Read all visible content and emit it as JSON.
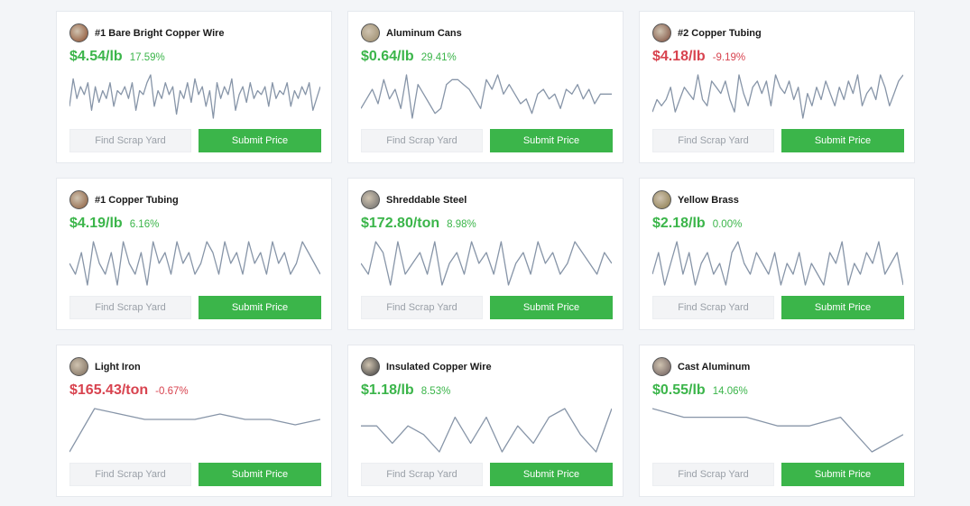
{
  "colors": {
    "up": "#3bb54a",
    "down": "#d8434f",
    "sparkline": "#8795a8",
    "button": "#3bb54a"
  },
  "find_label": "Find Scrap Yard",
  "submit_label": "Submit Price",
  "cards": [
    {
      "name": "#1 Bare Bright Copper Wire",
      "price": "$4.54/lb",
      "change": "17.59%",
      "direction": "up",
      "icon": "copper-wire-thumbnail",
      "series": [
        6,
        13,
        8,
        11,
        9,
        12,
        5,
        11,
        7,
        10,
        8,
        12,
        6,
        10,
        9,
        11,
        8,
        12,
        5,
        10,
        9,
        12,
        14,
        6,
        10,
        8,
        12,
        9,
        11,
        4,
        10,
        8,
        12,
        7,
        13,
        9,
        11,
        6,
        10,
        3,
        12,
        8,
        11,
        9,
        13,
        5,
        9,
        11,
        7,
        12,
        8,
        10,
        9,
        11,
        6,
        12,
        8,
        10,
        9,
        12,
        6,
        10,
        8,
        11,
        9,
        12,
        5,
        8,
        11
      ]
    },
    {
      "name": "Aluminum Cans",
      "price": "$0.64/lb",
      "change": "29.41%",
      "direction": "up",
      "icon": "aluminum-cans-thumbnail",
      "series": [
        10,
        12,
        14,
        11,
        16,
        12,
        14,
        10,
        17,
        8,
        15,
        13,
        11,
        9,
        10,
        15,
        16,
        16,
        15,
        14,
        12,
        10,
        16,
        14,
        17,
        13,
        15,
        13,
        11,
        12,
        9,
        13,
        14,
        12,
        13,
        10,
        14,
        13,
        15,
        12,
        14,
        11,
        13,
        13,
        13
      ]
    },
    {
      "name": "#2 Copper Tubing",
      "price": "$4.18/lb",
      "change": "-9.19%",
      "direction": "down",
      "icon": "copper-tubing-thumbnail",
      "series": [
        7,
        9,
        8,
        9,
        11,
        7,
        9,
        11,
        10,
        9,
        13,
        9,
        8,
        12,
        11,
        10,
        12,
        9,
        7,
        13,
        10,
        8,
        11,
        12,
        10,
        12,
        8,
        13,
        11,
        10,
        12,
        9,
        11,
        6,
        10,
        8,
        11,
        9,
        12,
        10,
        8,
        11,
        9,
        12,
        10,
        13,
        8,
        10,
        11,
        9,
        13,
        11,
        8,
        10,
        12,
        13
      ]
    },
    {
      "name": "#1 Copper Tubing",
      "price": "$4.19/lb",
      "change": "6.16%",
      "direction": "up",
      "icon": "copper-tubing-thumbnail",
      "series": [
        10,
        9,
        11,
        8,
        12,
        10,
        9,
        11,
        8,
        12,
        10,
        9,
        11,
        8,
        12,
        10,
        11,
        9,
        12,
        10,
        11,
        9,
        10,
        12,
        11,
        9,
        12,
        10,
        11,
        9,
        12,
        10,
        11,
        9,
        12,
        10,
        11,
        9,
        10,
        12,
        11,
        10,
        9
      ]
    },
    {
      "name": "Shreddable Steel",
      "price": "$172.80/ton",
      "change": "8.98%",
      "direction": "up",
      "icon": "steel-thumbnail",
      "series": [
        10,
        9,
        12,
        11,
        8,
        12,
        9,
        10,
        11,
        9,
        12,
        8,
        10,
        11,
        9,
        12,
        10,
        11,
        9,
        12,
        8,
        10,
        11,
        9,
        12,
        10,
        11,
        9,
        10,
        12,
        11,
        10,
        9,
        11,
        10
      ]
    },
    {
      "name": "Yellow Brass",
      "price": "$2.18/lb",
      "change": "0.00%",
      "direction": "up",
      "icon": "brass-thumbnail",
      "series": [
        10,
        12,
        9,
        11,
        13,
        10,
        12,
        9,
        11,
        12,
        10,
        11,
        9,
        12,
        13,
        11,
        10,
        12,
        11,
        10,
        12,
        9,
        11,
        10,
        12,
        9,
        11,
        10,
        9,
        12,
        11,
        13,
        9,
        11,
        10,
        12,
        11,
        13,
        10,
        11,
        12,
        9
      ]
    },
    {
      "name": "Light Iron",
      "price": "$165.43/ton",
      "change": "-0.67%",
      "direction": "down",
      "icon": "iron-thumbnail",
      "series": [
        6,
        14,
        13,
        12,
        12,
        12,
        13,
        12,
        12,
        11,
        12
      ]
    },
    {
      "name": "Insulated Copper Wire",
      "price": "$1.18/lb",
      "change": "8.53%",
      "direction": "up",
      "icon": "insulated-wire-thumbnail",
      "series": [
        11,
        11,
        9,
        11,
        10,
        8,
        12,
        9,
        12,
        8,
        11,
        9,
        12,
        13,
        10,
        8,
        13
      ]
    },
    {
      "name": "Cast Aluminum",
      "price": "$0.55/lb",
      "change": "14.06%",
      "direction": "up",
      "icon": "cast-aluminum-thumbnail",
      "series": [
        13,
        12,
        12,
        12,
        11,
        11,
        12,
        8,
        10
      ]
    }
  ]
}
